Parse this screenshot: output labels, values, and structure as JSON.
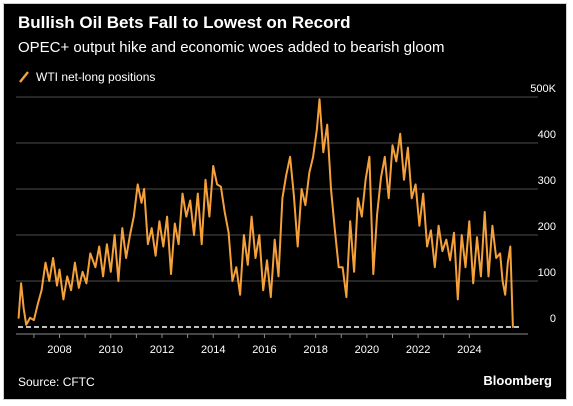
{
  "header": {
    "title": "Bullish Oil Bets Fall to Lowest on Record",
    "subtitle": "OPEC+ output hike and economic woes added to bearish gloom"
  },
  "footer": {
    "source": "Source: CFTC",
    "brand": "Bloomberg"
  },
  "colors": {
    "background": "#000000",
    "line": "#f5a13b",
    "grid": "#4d4d4d",
    "text": "#ffffff"
  },
  "chart_data": {
    "type": "line",
    "title": "Bullish Oil Bets Fall to Lowest on Record",
    "subtitle": "OPEC+ output hike and economic woes added to bearish gloom",
    "xlabel": "",
    "ylabel": "",
    "xlim": [
      2006.3,
      2025.9
    ],
    "ylim": [
      0,
      500
    ],
    "y_ticks": [
      0,
      100,
      200,
      300,
      400,
      500
    ],
    "y_tick_labels": [
      "0",
      "100",
      "200",
      "300",
      "400",
      "500K"
    ],
    "x_ticks": [
      2008,
      2010,
      2012,
      2014,
      2016,
      2018,
      2020,
      2022,
      2024
    ],
    "x_tick_labels": [
      "2008",
      "2010",
      "2012",
      "2014",
      "2016",
      "2018",
      "2020",
      "2022",
      "2024"
    ],
    "grid": true,
    "y_axis_side": "right",
    "legend_position": "top-left",
    "series": [
      {
        "name": "WTI net-long positions",
        "color": "#f5a13b",
        "x": [
          2006.4,
          2006.5,
          2006.6,
          2006.7,
          2006.85,
          2007.0,
          2007.15,
          2007.3,
          2007.45,
          2007.6,
          2007.75,
          2007.9,
          2008.0,
          2008.15,
          2008.3,
          2008.45,
          2008.6,
          2008.75,
          2008.9,
          2009.05,
          2009.2,
          2009.4,
          2009.55,
          2009.7,
          2009.85,
          2010.0,
          2010.15,
          2010.3,
          2010.45,
          2010.6,
          2010.75,
          2010.9,
          2011.05,
          2011.2,
          2011.3,
          2011.45,
          2011.6,
          2011.75,
          2011.9,
          2012.05,
          2012.2,
          2012.35,
          2012.5,
          2012.65,
          2012.8,
          2012.95,
          2013.1,
          2013.25,
          2013.4,
          2013.55,
          2013.7,
          2013.85,
          2014.0,
          2014.15,
          2014.3,
          2014.45,
          2014.6,
          2014.75,
          2014.9,
          2015.05,
          2015.2,
          2015.35,
          2015.5,
          2015.65,
          2015.8,
          2015.95,
          2016.1,
          2016.25,
          2016.4,
          2016.55,
          2016.7,
          2016.85,
          2017.0,
          2017.15,
          2017.3,
          2017.45,
          2017.6,
          2017.75,
          2017.9,
          2018.05,
          2018.15,
          2018.3,
          2018.45,
          2018.6,
          2018.75,
          2018.9,
          2019.05,
          2019.2,
          2019.35,
          2019.5,
          2019.65,
          2019.8,
          2019.95,
          2020.1,
          2020.25,
          2020.4,
          2020.55,
          2020.7,
          2020.85,
          2021.0,
          2021.15,
          2021.3,
          2021.45,
          2021.6,
          2021.75,
          2021.9,
          2022.05,
          2022.2,
          2022.35,
          2022.5,
          2022.65,
          2022.8,
          2022.95,
          2023.1,
          2023.25,
          2023.4,
          2023.55,
          2023.7,
          2023.85,
          2024.0,
          2024.15,
          2024.3,
          2024.45,
          2024.6,
          2024.75,
          2024.9,
          2025.05,
          2025.2,
          2025.3,
          2025.4,
          2025.5,
          2025.6,
          2025.7
        ],
        "values": [
          20,
          95,
          40,
          5,
          20,
          15,
          50,
          80,
          140,
          100,
          150,
          90,
          125,
          60,
          110,
          80,
          140,
          85,
          120,
          95,
          160,
          130,
          175,
          110,
          180,
          120,
          200,
          100,
          215,
          150,
          200,
          240,
          310,
          270,
          300,
          180,
          215,
          155,
          230,
          175,
          240,
          115,
          225,
          180,
          290,
          240,
          275,
          200,
          290,
          180,
          320,
          240,
          350,
          310,
          305,
          250,
          205,
          100,
          130,
          70,
          200,
          135,
          240,
          150,
          200,
          80,
          145,
          65,
          190,
          110,
          280,
          330,
          370,
          285,
          175,
          300,
          265,
          335,
          370,
          430,
          495,
          380,
          440,
          300,
          210,
          130,
          130,
          65,
          230,
          120,
          280,
          240,
          320,
          370,
          115,
          245,
          325,
          370,
          280,
          395,
          360,
          420,
          320,
          390,
          280,
          310,
          220,
          290,
          175,
          210,
          130,
          220,
          165,
          190,
          145,
          205,
          60,
          200,
          130,
          230,
          95,
          195,
          110,
          250,
          110,
          220,
          150,
          160,
          100,
          70,
          140,
          175,
          0
        ]
      }
    ],
    "baseline": 0
  }
}
